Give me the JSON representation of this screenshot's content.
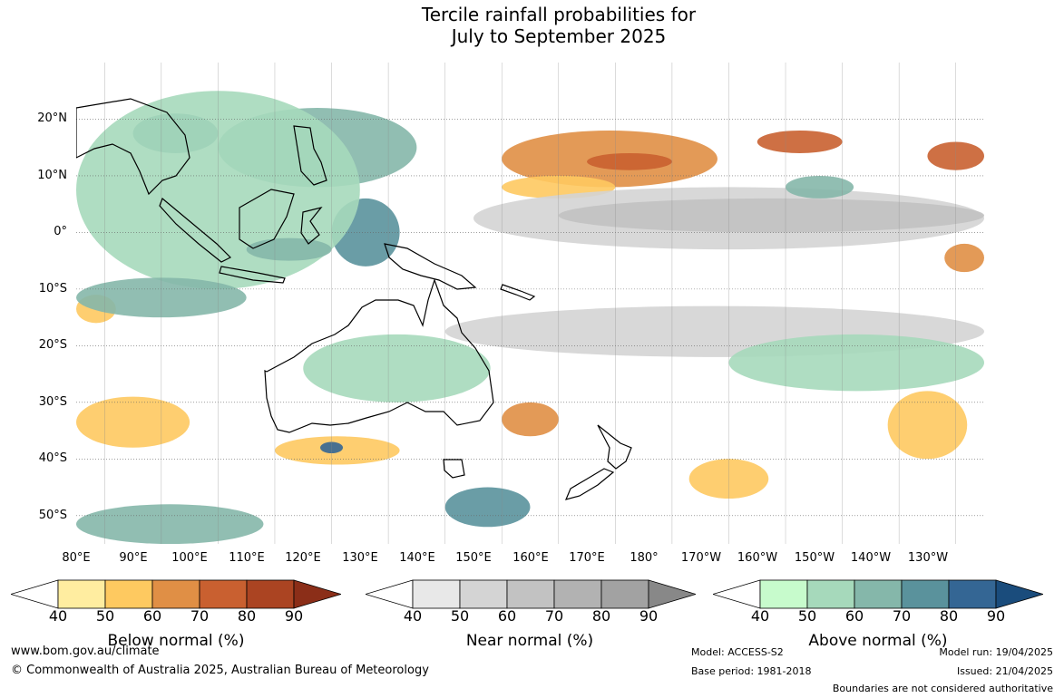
{
  "title_line1": "Tercile rainfall probabilities for",
  "title_line2": "July to September 2025",
  "lat_labels": [
    "20°N",
    "10°N",
    "0°",
    "10°S",
    "20°S",
    "30°S",
    "40°S",
    "50°S"
  ],
  "lon_labels": [
    "80°E",
    "90°E",
    "100°E",
    "110°E",
    "120°E",
    "130°E",
    "140°E",
    "150°E",
    "160°E",
    "170°E",
    "180°",
    "170°W",
    "160°W",
    "150°W",
    "140°W",
    "130°W"
  ],
  "colorbars": [
    {
      "label": "Below normal (%)",
      "ticks": [
        "40",
        "50",
        "60",
        "70",
        "80",
        "90"
      ],
      "colors": [
        "#ffeda0",
        "#fec960",
        "#e08f45",
        "#c96030",
        "#ab4422",
        "#8b2e18"
      ]
    },
    {
      "label": "Near normal (%)",
      "ticks": [
        "40",
        "50",
        "60",
        "70",
        "80",
        "90"
      ],
      "colors": [
        "#e8e8e8",
        "#d4d4d4",
        "#c2c2c2",
        "#b2b2b2",
        "#a2a2a2",
        "#888888"
      ]
    },
    {
      "label": "Above normal (%)",
      "ticks": [
        "40",
        "50",
        "60",
        "70",
        "80",
        "90"
      ],
      "colors": [
        "#c7fbcc",
        "#a6d9bb",
        "#85b7aa",
        "#5a929c",
        "#346694",
        "#1a4c7c"
      ]
    }
  ],
  "footer": {
    "website": "www.bom.gov.au/climate",
    "copyright": "© Commonwealth of Australia 2025, Australian Bureau of Meteorology",
    "model": "Model: ACCESS-S2",
    "base_period": "Base period: 1981-2018",
    "model_run": "Model run: 19/04/2025",
    "issued": "Issued: 21/04/2025",
    "disclaimer": "Boundaries are not considered authoritative"
  },
  "map_data": {
    "projection": "plate-carree",
    "lon_range_east": [
      75,
      235
    ],
    "lat_range": [
      -55,
      30
    ],
    "regions": [
      {
        "category": "below",
        "level": 2,
        "lon": [
          150,
          188
        ],
        "lat": [
          8,
          18
        ]
      },
      {
        "category": "below",
        "level": 3,
        "lon": [
          165,
          180
        ],
        "lat": [
          11,
          14
        ]
      },
      {
        "category": "below",
        "level": 3,
        "lon": [
          195,
          210
        ],
        "lat": [
          14,
          18
        ]
      },
      {
        "category": "below",
        "level": 3,
        "lon": [
          225,
          235
        ],
        "lat": [
          11,
          16
        ]
      },
      {
        "category": "below",
        "level": 1,
        "lon": [
          150,
          170
        ],
        "lat": [
          6,
          10
        ]
      },
      {
        "category": "below",
        "level": 2,
        "lon": [
          228,
          235
        ],
        "lat": [
          -7,
          -2
        ]
      },
      {
        "category": "below",
        "level": 1,
        "lon": [
          75,
          82
        ],
        "lat": [
          -16,
          -11
        ]
      },
      {
        "category": "below",
        "level": 1,
        "lon": [
          75,
          95
        ],
        "lat": [
          -38,
          -29
        ]
      },
      {
        "category": "below",
        "level": 1,
        "lon": [
          110,
          132
        ],
        "lat": [
          -41,
          -36
        ]
      },
      {
        "category": "below",
        "level": 1,
        "lon": [
          218,
          232
        ],
        "lat": [
          -40,
          -28
        ]
      },
      {
        "category": "below",
        "level": 2,
        "lon": [
          150,
          160
        ],
        "lat": [
          -36,
          -30
        ]
      },
      {
        "category": "below",
        "level": 1,
        "lon": [
          183,
          197
        ],
        "lat": [
          -47,
          -40
        ]
      },
      {
        "category": "near",
        "level": 1,
        "lon": [
          145,
          235
        ],
        "lat": [
          -3,
          8
        ]
      },
      {
        "category": "near",
        "level": 2,
        "lon": [
          160,
          235
        ],
        "lat": [
          0,
          6
        ]
      },
      {
        "category": "near",
        "level": 1,
        "lon": [
          140,
          235
        ],
        "lat": [
          -22,
          -13
        ]
      },
      {
        "category": "above",
        "level": 2,
        "lon": [
          100,
          135
        ],
        "lat": [
          8,
          22
        ]
      },
      {
        "category": "above",
        "level": 3,
        "lon": [
          120,
          132
        ],
        "lat": [
          -6,
          6
        ]
      },
      {
        "category": "above",
        "level": 3,
        "lon": [
          85,
          100
        ],
        "lat": [
          14,
          21
        ]
      },
      {
        "category": "above",
        "level": 1,
        "lon": [
          75,
          125
        ],
        "lat": [
          -10,
          25
        ]
      },
      {
        "category": "above",
        "level": 2,
        "lon": [
          105,
          120
        ],
        "lat": [
          -5,
          -1
        ]
      },
      {
        "category": "above",
        "level": 1,
        "lon": [
          115,
          148
        ],
        "lat": [
          -30,
          -18
        ]
      },
      {
        "category": "above",
        "level": 2,
        "lon": [
          75,
          105
        ],
        "lat": [
          -15,
          -8
        ]
      },
      {
        "category": "above",
        "level": 2,
        "lon": [
          75,
          108
        ],
        "lat": [
          -55,
          -48
        ]
      },
      {
        "category": "above",
        "level": 3,
        "lon": [
          140,
          155
        ],
        "lat": [
          -52,
          -45
        ]
      },
      {
        "category": "above",
        "level": 1,
        "lon": [
          190,
          235
        ],
        "lat": [
          -28,
          -18
        ]
      },
      {
        "category": "above",
        "level": 2,
        "lon": [
          200,
          212
        ],
        "lat": [
          6,
          10
        ]
      },
      {
        "category": "above",
        "level": 4,
        "lon": [
          118,
          122
        ],
        "lat": [
          -39,
          -37
        ]
      }
    ]
  }
}
